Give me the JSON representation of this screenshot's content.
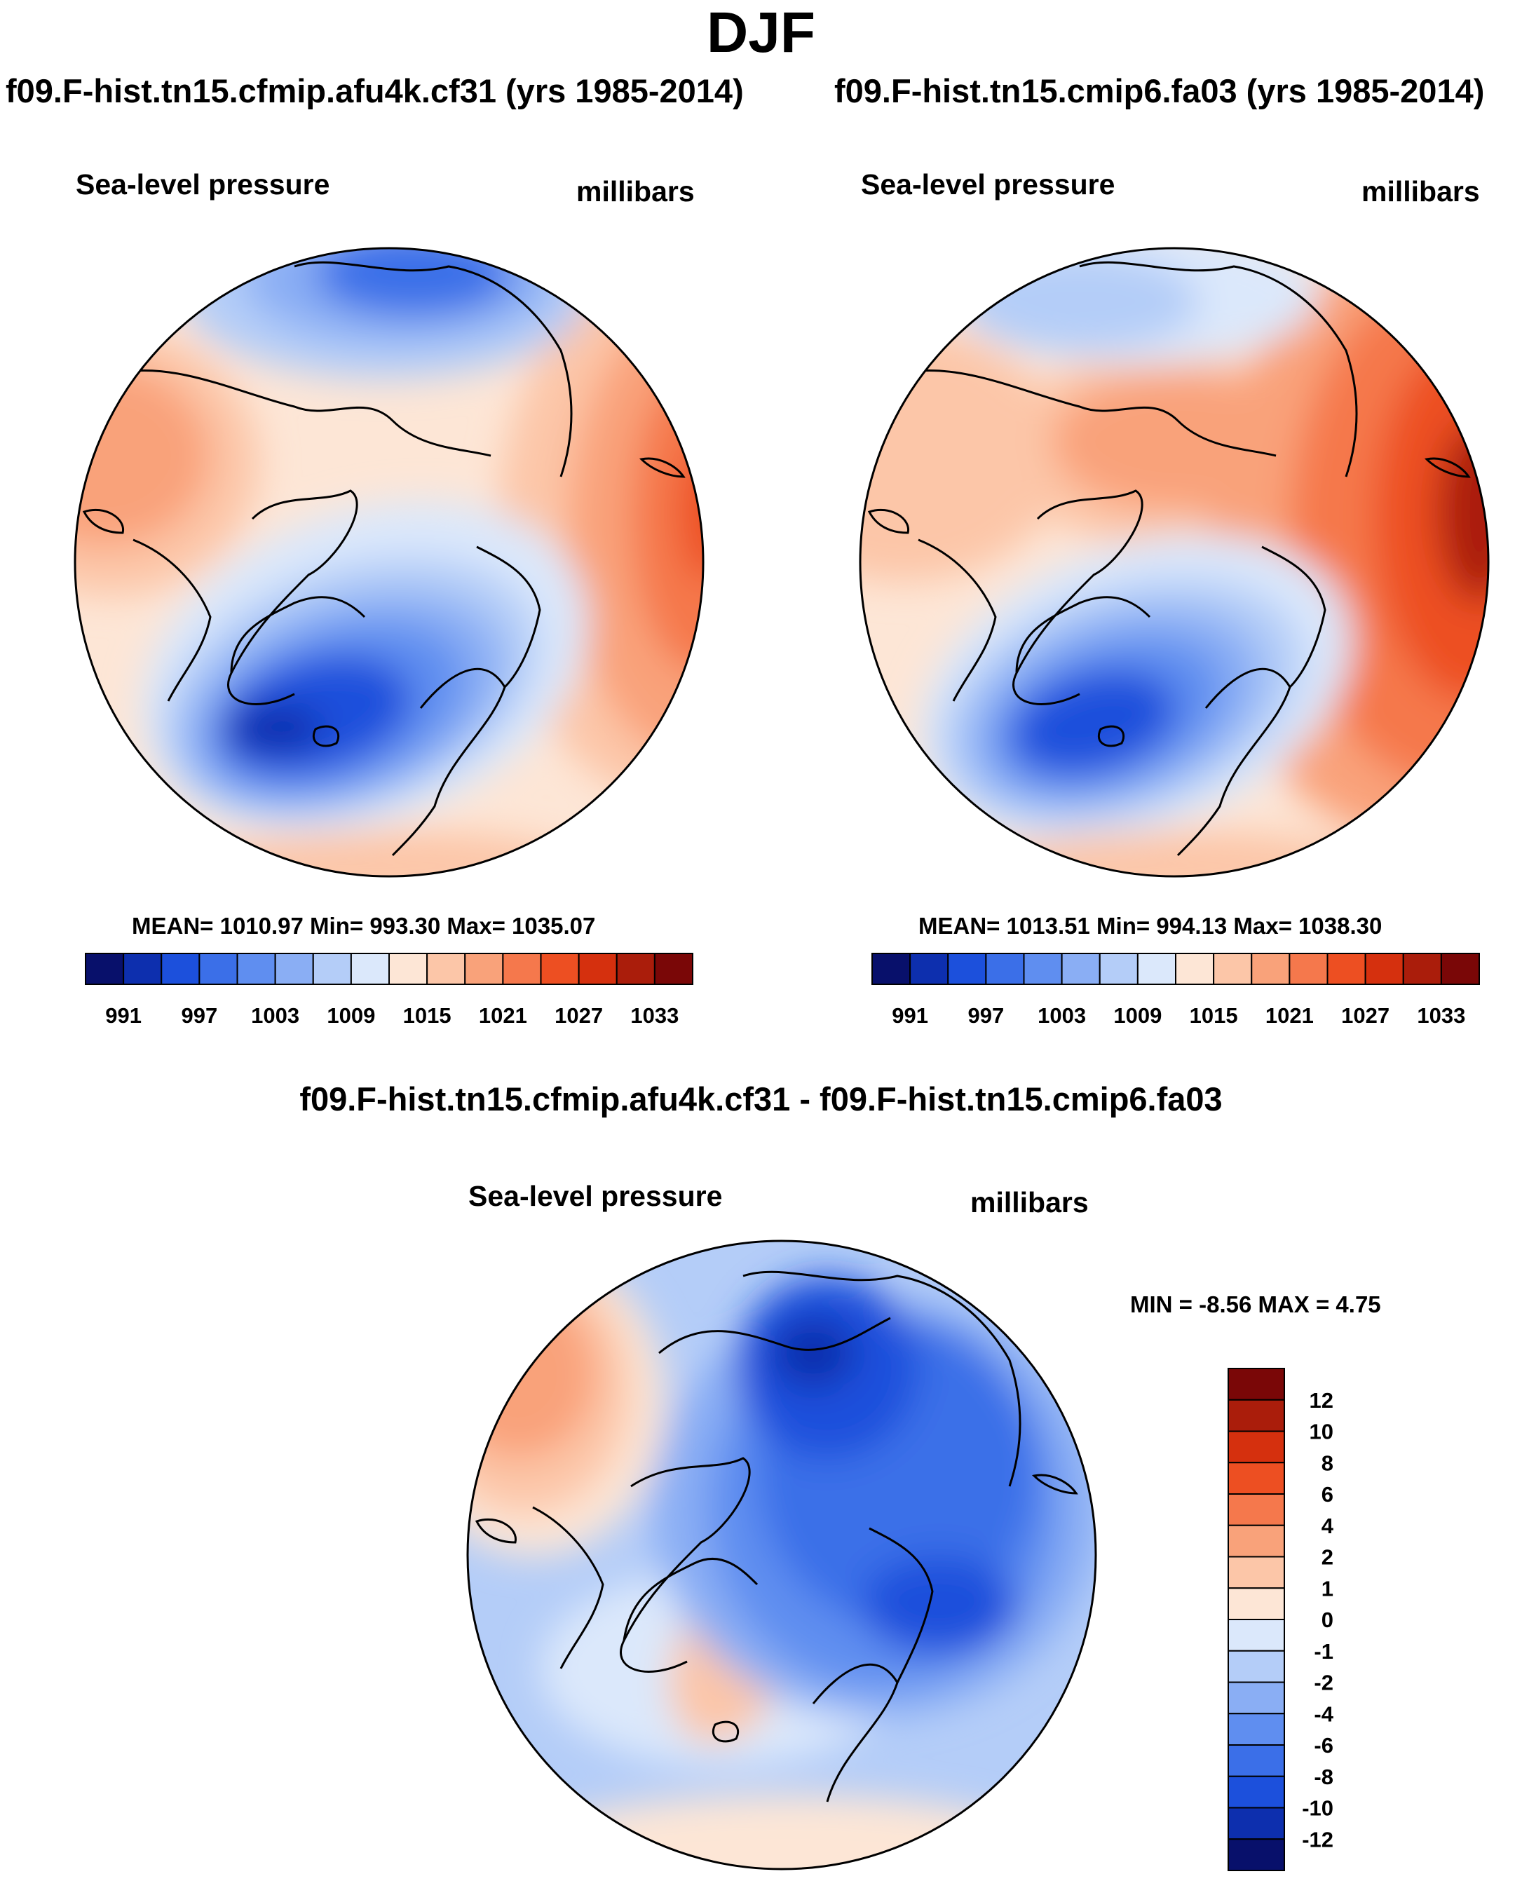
{
  "title": "DJF",
  "panels": [
    {
      "id": "left",
      "experiment": "f09.F-hist.tn15.cfmip.afu4k.cf31 (yrs 1985-2014)",
      "variable": "Sea-level pressure",
      "units": "millibars",
      "stats": "MEAN= 1010.97  Min= 993.30  Max= 1035.07",
      "colorbar_ticks": [
        "991",
        "997",
        "1003",
        "1009",
        "1015",
        "1021",
        "1027",
        "1033"
      ]
    },
    {
      "id": "right",
      "experiment": "f09.F-hist.tn15.cmip6.fa03 (yrs 1985-2014)",
      "variable": "Sea-level pressure",
      "units": "millibars",
      "stats": "MEAN= 1013.51  Min= 994.13  Max= 1038.30",
      "colorbar_ticks": [
        "991",
        "997",
        "1003",
        "1009",
        "1015",
        "1021",
        "1027",
        "1033"
      ]
    }
  ],
  "difference": {
    "title": "f09.F-hist.tn15.cfmip.afu4k.cf31 - f09.F-hist.tn15.cmip6.fa03",
    "variable": "Sea-level pressure",
    "units": "millibars",
    "stats": "MIN =  -8.56 MAX =    4.75",
    "colorbar_ticks": [
      "12",
      "10",
      "8",
      "6",
      "4",
      "2",
      "1",
      "0",
      "-1",
      "-2",
      "-4",
      "-6",
      "-8",
      "-10",
      "-12"
    ]
  },
  "colors": {
    "abs_scale": [
      "#08106b",
      "#0d2fae",
      "#1c50dc",
      "#3b6fe8",
      "#5f8ef0",
      "#8aaef4",
      "#b4cdf8",
      "#dbe8fb",
      "#fde6d6",
      "#fcc6a8",
      "#f9a27a",
      "#f5784c",
      "#ed4f22",
      "#d5300e",
      "#aa1d0b",
      "#7a0707"
    ],
    "diff_scale": [
      "#7a0707",
      "#aa1d0b",
      "#d5300e",
      "#ed4f22",
      "#f5784c",
      "#f9a27a",
      "#fcc6a8",
      "#fde6d6",
      "#dbe8fb",
      "#b4cdf8",
      "#8aaef4",
      "#5f8ef0",
      "#3b6fe8",
      "#1c50dc",
      "#0d2fae",
      "#08106b"
    ]
  }
}
